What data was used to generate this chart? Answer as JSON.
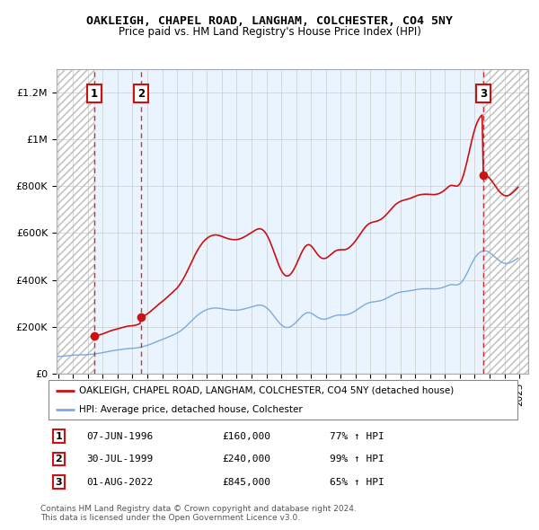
{
  "title": "OAKLEIGH, CHAPEL ROAD, LANGHAM, COLCHESTER, CO4 5NY",
  "subtitle": "Price paid vs. HM Land Registry's House Price Index (HPI)",
  "ylabel_ticks": [
    "£0",
    "£200K",
    "£400K",
    "£600K",
    "£800K",
    "£1M",
    "£1.2M"
  ],
  "ytick_vals": [
    0,
    200000,
    400000,
    600000,
    800000,
    1000000,
    1200000
  ],
  "ylim": [
    0,
    1300000
  ],
  "xlim_start": 1993.9,
  "xlim_end": 2025.6,
  "sales": [
    {
      "num": 1,
      "date_label": "07-JUN-1996",
      "year": 1996.44,
      "price": 160000,
      "pct": "77%",
      "dir": "↑"
    },
    {
      "num": 2,
      "date_label": "30-JUL-1999",
      "year": 1999.58,
      "price": 240000,
      "pct": "99%",
      "dir": "↑"
    },
    {
      "num": 3,
      "date_label": "01-AUG-2022",
      "year": 2022.58,
      "price": 845000,
      "pct": "65%",
      "dir": "↑"
    }
  ],
  "hpi_line_color": "#7aabdb",
  "sale_line_color": "#cc1111",
  "sale_dot_color": "#cc1111",
  "vline_color": "#cc1111",
  "shade_color": "#ddeeff",
  "legend_label_red": "OAKLEIGH, CHAPEL ROAD, LANGHAM, COLCHESTER, CO4 5NY (detached house)",
  "legend_label_blue": "HPI: Average price, detached house, Colchester",
  "footer": "Contains HM Land Registry data © Crown copyright and database right 2024.\nThis data is licensed under the Open Government Licence v3.0.",
  "hpi_index": [
    1994.0,
    53.0,
    1994.083,
    53.2,
    1994.167,
    53.5,
    1994.25,
    53.8,
    1994.333,
    54.1,
    1994.417,
    54.5,
    1994.5,
    54.9,
    1994.583,
    55.3,
    1994.667,
    55.7,
    1994.75,
    56.1,
    1994.833,
    56.5,
    1994.917,
    56.9,
    1995.0,
    57.2,
    1995.083,
    57.4,
    1995.167,
    57.5,
    1995.25,
    57.6,
    1995.333,
    57.6,
    1995.417,
    57.7,
    1995.5,
    57.8,
    1995.583,
    57.9,
    1995.667,
    58.0,
    1995.75,
    58.2,
    1995.833,
    58.4,
    1995.917,
    58.6,
    1996.0,
    58.9,
    1996.083,
    59.2,
    1996.167,
    59.5,
    1996.25,
    59.9,
    1996.333,
    60.3,
    1996.417,
    60.7,
    1996.5,
    61.2,
    1996.583,
    61.8,
    1996.667,
    62.4,
    1996.75,
    63.0,
    1996.833,
    63.6,
    1996.917,
    64.2,
    1997.0,
    64.9,
    1997.083,
    65.7,
    1997.167,
    66.5,
    1997.25,
    67.3,
    1997.333,
    68.1,
    1997.417,
    68.9,
    1997.5,
    69.6,
    1997.583,
    70.3,
    1997.667,
    70.9,
    1997.75,
    71.5,
    1997.833,
    72.0,
    1997.917,
    72.5,
    1998.0,
    73.0,
    1998.083,
    73.6,
    1998.167,
    74.2,
    1998.25,
    74.8,
    1998.333,
    75.4,
    1998.417,
    76.0,
    1998.5,
    76.5,
    1998.583,
    77.0,
    1998.667,
    77.4,
    1998.75,
    77.7,
    1998.833,
    77.9,
    1998.917,
    78.0,
    1999.0,
    78.2,
    1999.083,
    78.5,
    1999.167,
    78.9,
    1999.25,
    79.4,
    1999.333,
    80.0,
    1999.417,
    80.7,
    1999.5,
    81.5,
    1999.583,
    82.3,
    1999.667,
    83.2,
    1999.75,
    84.2,
    1999.833,
    85.2,
    1999.917,
    86.3,
    2000.0,
    87.5,
    2000.083,
    88.8,
    2000.167,
    90.2,
    2000.25,
    91.7,
    2000.333,
    93.2,
    2000.417,
    94.8,
    2000.5,
    96.4,
    2000.583,
    98.0,
    2000.667,
    99.6,
    2000.75,
    101.2,
    2000.833,
    102.7,
    2000.917,
    104.1,
    2001.0,
    105.5,
    2001.083,
    107.0,
    2001.167,
    108.5,
    2001.25,
    110.1,
    2001.333,
    111.7,
    2001.417,
    113.3,
    2001.5,
    115.0,
    2001.583,
    116.7,
    2001.667,
    118.4,
    2001.75,
    120.1,
    2001.833,
    121.8,
    2001.917,
    123.5,
    2002.0,
    125.2,
    2002.083,
    127.5,
    2002.167,
    130.0,
    2002.25,
    132.7,
    2002.333,
    135.6,
    2002.417,
    138.7,
    2002.5,
    142.0,
    2002.583,
    145.5,
    2002.667,
    149.2,
    2002.75,
    153.0,
    2002.833,
    156.9,
    2002.917,
    160.8,
    2003.0,
    164.7,
    2003.083,
    168.5,
    2003.167,
    172.2,
    2003.25,
    175.7,
    2003.333,
    179.0,
    2003.417,
    182.1,
    2003.5,
    185.0,
    2003.583,
    187.7,
    2003.667,
    190.2,
    2003.75,
    192.5,
    2003.833,
    194.5,
    2003.917,
    196.3,
    2004.0,
    197.8,
    2004.083,
    199.2,
    2004.167,
    200.4,
    2004.25,
    201.3,
    2004.333,
    202.0,
    2004.417,
    202.5,
    2004.5,
    202.8,
    2004.583,
    202.9,
    2004.667,
    202.8,
    2004.75,
    202.5,
    2004.833,
    202.1,
    2004.917,
    201.5,
    2005.0,
    200.8,
    2005.083,
    200.1,
    2005.167,
    199.4,
    2005.25,
    198.7,
    2005.333,
    198.1,
    2005.417,
    197.5,
    2005.5,
    197.0,
    2005.583,
    196.6,
    2005.667,
    196.3,
    2005.75,
    196.1,
    2005.833,
    196.0,
    2005.917,
    196.0,
    2006.0,
    196.1,
    2006.083,
    196.4,
    2006.167,
    196.8,
    2006.25,
    197.4,
    2006.333,
    198.1,
    2006.417,
    198.9,
    2006.5,
    199.8,
    2006.583,
    200.8,
    2006.667,
    201.9,
    2006.75,
    203.0,
    2006.833,
    204.1,
    2006.917,
    205.2,
    2007.0,
    206.3,
    2007.083,
    207.5,
    2007.167,
    208.7,
    2007.25,
    209.8,
    2007.333,
    210.8,
    2007.417,
    211.5,
    2007.5,
    211.9,
    2007.583,
    211.9,
    2007.667,
    211.4,
    2007.75,
    210.4,
    2007.833,
    208.8,
    2007.917,
    206.7,
    2008.0,
    204.0,
    2008.083,
    200.8,
    2008.167,
    197.1,
    2008.25,
    193.0,
    2008.333,
    188.5,
    2008.417,
    183.7,
    2008.5,
    178.7,
    2008.583,
    173.6,
    2008.667,
    168.5,
    2008.75,
    163.6,
    2008.833,
    159.0,
    2008.917,
    154.8,
    2009.0,
    151.1,
    2009.083,
    148.0,
    2009.167,
    145.6,
    2009.25,
    143.9,
    2009.333,
    143.0,
    2009.417,
    142.8,
    2009.5,
    143.3,
    2009.583,
    144.6,
    2009.667,
    146.5,
    2009.75,
    149.0,
    2009.833,
    152.0,
    2009.917,
    155.4,
    2010.0,
    159.2,
    2010.083,
    163.2,
    2010.167,
    167.3,
    2010.25,
    171.4,
    2010.333,
    175.4,
    2010.417,
    179.1,
    2010.5,
    182.4,
    2010.583,
    185.1,
    2010.667,
    187.1,
    2010.75,
    188.3,
    2010.833,
    188.7,
    2010.917,
    188.3,
    2011.0,
    187.0,
    2011.083,
    185.1,
    2011.167,
    182.8,
    2011.25,
    180.2,
    2011.333,
    177.6,
    2011.417,
    175.1,
    2011.5,
    172.9,
    2011.583,
    171.1,
    2011.667,
    169.7,
    2011.75,
    168.8,
    2011.833,
    168.4,
    2011.917,
    168.5,
    2012.0,
    169.0,
    2012.083,
    169.9,
    2012.167,
    171.2,
    2012.25,
    172.7,
    2012.333,
    174.3,
    2012.417,
    175.9,
    2012.5,
    177.4,
    2012.583,
    178.7,
    2012.667,
    179.8,
    2012.75,
    180.5,
    2012.833,
    181.0,
    2012.917,
    181.2,
    2013.0,
    181.2,
    2013.083,
    181.1,
    2013.167,
    181.1,
    2013.25,
    181.3,
    2013.333,
    181.7,
    2013.417,
    182.4,
    2013.5,
    183.4,
    2013.583,
    184.7,
    2013.667,
    186.3,
    2013.75,
    188.1,
    2013.833,
    190.1,
    2013.917,
    192.2,
    2014.0,
    194.5,
    2014.083,
    197.0,
    2014.167,
    199.6,
    2014.25,
    202.3,
    2014.333,
    205.0,
    2014.417,
    207.7,
    2014.5,
    210.2,
    2014.583,
    212.6,
    2014.667,
    214.8,
    2014.75,
    216.7,
    2014.833,
    218.3,
    2014.917,
    219.6,
    2015.0,
    220.5,
    2015.083,
    221.2,
    2015.167,
    221.7,
    2015.25,
    222.1,
    2015.333,
    222.5,
    2015.417,
    223.0,
    2015.5,
    223.6,
    2015.583,
    224.4,
    2015.667,
    225.4,
    2015.75,
    226.6,
    2015.833,
    227.9,
    2015.917,
    229.5,
    2016.0,
    231.2,
    2016.083,
    233.1,
    2016.167,
    235.1,
    2016.25,
    237.2,
    2016.333,
    239.3,
    2016.417,
    241.4,
    2016.5,
    243.4,
    2016.583,
    245.3,
    2016.667,
    247.1,
    2016.75,
    248.6,
    2016.833,
    249.9,
    2016.917,
    251.0,
    2017.0,
    251.9,
    2017.083,
    252.7,
    2017.167,
    253.3,
    2017.25,
    253.8,
    2017.333,
    254.3,
    2017.417,
    254.8,
    2017.5,
    255.3,
    2017.583,
    255.8,
    2017.667,
    256.4,
    2017.75,
    257.1,
    2017.833,
    257.8,
    2017.917,
    258.6,
    2018.0,
    259.4,
    2018.083,
    260.1,
    2018.167,
    260.8,
    2018.25,
    261.3,
    2018.333,
    261.7,
    2018.417,
    262.0,
    2018.5,
    262.2,
    2018.583,
    262.4,
    2018.667,
    262.5,
    2018.75,
    262.5,
    2018.833,
    262.4,
    2018.917,
    262.3,
    2019.0,
    262.1,
    2019.083,
    262.0,
    2019.167,
    261.9,
    2019.25,
    261.9,
    2019.333,
    262.0,
    2019.417,
    262.3,
    2019.5,
    262.7,
    2019.583,
    263.3,
    2019.667,
    264.0,
    2019.75,
    265.0,
    2019.833,
    266.1,
    2019.917,
    267.4,
    2020.0,
    268.8,
    2020.083,
    270.3,
    2020.167,
    271.9,
    2020.25,
    273.6,
    2020.333,
    274.8,
    2020.417,
    275.4,
    2020.5,
    275.4,
    2020.583,
    275.0,
    2020.667,
    274.5,
    2020.75,
    274.2,
    2020.833,
    274.5,
    2020.917,
    275.6,
    2021.0,
    277.7,
    2021.083,
    280.9,
    2021.167,
    285.3,
    2021.25,
    290.7,
    2021.333,
    297.0,
    2021.417,
    304.1,
    2021.5,
    311.7,
    2021.583,
    319.7,
    2021.667,
    327.8,
    2021.75,
    335.8,
    2021.833,
    343.5,
    2021.917,
    350.6,
    2022.0,
    357.0,
    2022.083,
    362.6,
    2022.167,
    367.3,
    2022.25,
    371.2,
    2022.333,
    374.3,
    2022.417,
    376.7,
    2022.5,
    378.4,
    2022.583,
    379.5,
    2022.667,
    379.9,
    2022.75,
    379.6,
    2022.833,
    378.5,
    2022.917,
    376.8,
    2023.0,
    374.5,
    2023.083,
    371.8,
    2023.167,
    368.7,
    2023.25,
    365.3,
    2023.333,
    361.8,
    2023.417,
    358.3,
    2023.5,
    354.9,
    2023.583,
    351.7,
    2023.667,
    348.8,
    2023.75,
    346.3,
    2023.833,
    344.2,
    2023.917,
    342.5,
    2024.0,
    341.3,
    2024.083,
    340.7,
    2024.167,
    340.7,
    2024.25,
    341.2,
    2024.333,
    342.2,
    2024.417,
    343.7,
    2024.5,
    345.5,
    2024.583,
    347.5,
    2024.667,
    349.8,
    2024.75,
    352.2,
    2024.833,
    354.7,
    2024.917,
    357.2
  ]
}
